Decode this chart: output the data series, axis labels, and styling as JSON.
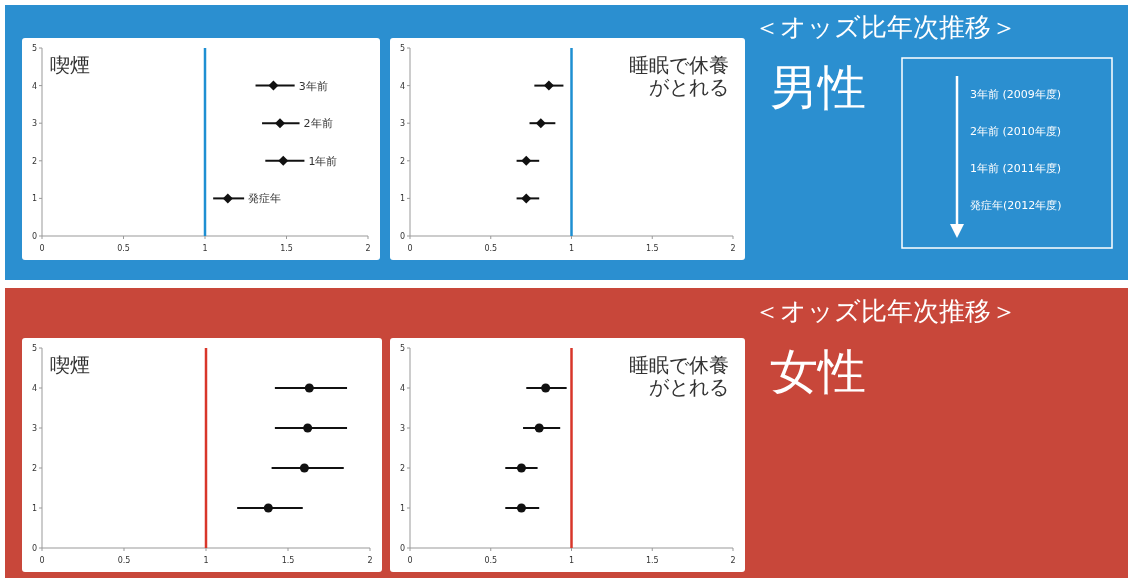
{
  "chart_data": [
    {
      "type": "scatter",
      "title": "喫煙",
      "xlim": [
        0,
        2
      ],
      "xticks": [
        0,
        0.5,
        1,
        1.5,
        2
      ],
      "ylim": [
        0,
        5
      ],
      "yticks": [
        0,
        1,
        2,
        3,
        4,
        5
      ],
      "marker": "diamond",
      "ref_lines": [
        {
          "axis": "x",
          "value": 1,
          "color": "#1e8fd2"
        }
      ],
      "series": [
        {
          "color": "#111111",
          "x": [
            1.42,
            1.46,
            1.48,
            1.14
          ],
          "values": [
            4,
            3,
            2,
            1
          ],
          "xerrors": [
            [
              1.31,
              1.55
            ],
            [
              1.35,
              1.58
            ],
            [
              1.37,
              1.61
            ],
            [
              1.05,
              1.24
            ]
          ]
        }
      ],
      "annotations": [
        {
          "text": "3年前",
          "x": 1.55,
          "y": 4
        },
        {
          "text": "2年前",
          "x": 1.58,
          "y": 3
        },
        {
          "text": "1年前",
          "x": 1.61,
          "y": 2
        },
        {
          "text": "発症年",
          "x": 1.24,
          "y": 1
        }
      ]
    },
    {
      "type": "scatter",
      "title": "睡眠で休養がとれる",
      "xlim": [
        0,
        2
      ],
      "xticks": [
        0,
        0.5,
        1,
        1.5,
        2
      ],
      "ylim": [
        0,
        5
      ],
      "yticks": [
        0,
        1,
        2,
        3,
        4,
        5
      ],
      "marker": "diamond",
      "ref_lines": [
        {
          "axis": "x",
          "value": 1,
          "color": "#1e8fd2"
        }
      ],
      "series": [
        {
          "color": "#111111",
          "x": [
            0.86,
            0.81,
            0.72,
            0.72
          ],
          "values": [
            4,
            3,
            2,
            1
          ],
          "xerrors": [
            [
              0.77,
              0.95
            ],
            [
              0.74,
              0.9
            ],
            [
              0.66,
              0.8
            ],
            [
              0.66,
              0.8
            ]
          ]
        }
      ]
    },
    {
      "type": "other",
      "title": "＜オッズ比年次推移＞",
      "subtitle": "男性",
      "annotations": [
        "3年前 (2009年度)",
        "2年前 (2010年度)",
        "1年前 (2011年度)",
        "発症年(2012年度)"
      ]
    },
    {
      "type": "scatter",
      "title": "喫煙",
      "xlim": [
        0,
        2
      ],
      "xticks": [
        0,
        0.5,
        1,
        1.5,
        2
      ],
      "ylim": [
        0,
        5
      ],
      "yticks": [
        0,
        1,
        2,
        3,
        4,
        5
      ],
      "marker": "circle",
      "ref_lines": [
        {
          "axis": "x",
          "value": 1,
          "color": "#d8362a"
        }
      ],
      "series": [
        {
          "color": "#111111",
          "x": [
            1.63,
            1.62,
            1.6,
            1.38
          ],
          "values": [
            4,
            3,
            2,
            1
          ],
          "xerrors": [
            [
              1.42,
              1.86
            ],
            [
              1.42,
              1.86
            ],
            [
              1.4,
              1.84
            ],
            [
              1.19,
              1.59
            ]
          ]
        }
      ]
    },
    {
      "type": "scatter",
      "title": "睡眠で休養がとれる",
      "xlim": [
        0,
        2
      ],
      "xticks": [
        0,
        0.5,
        1,
        1.5,
        2
      ],
      "ylim": [
        0,
        5
      ],
      "yticks": [
        0,
        1,
        2,
        3,
        4,
        5
      ],
      "marker": "circle",
      "ref_lines": [
        {
          "axis": "x",
          "value": 1,
          "color": "#d8362a"
        }
      ],
      "series": [
        {
          "color": "#111111",
          "x": [
            0.84,
            0.8,
            0.69,
            0.69
          ],
          "values": [
            4,
            3,
            2,
            1
          ],
          "xerrors": [
            [
              0.72,
              0.97
            ],
            [
              0.7,
              0.93
            ],
            [
              0.59,
              0.79
            ],
            [
              0.59,
              0.8
            ]
          ]
        }
      ]
    },
    {
      "type": "other",
      "title": "＜オッズ比年次推移＞",
      "subtitle": "女性"
    }
  ]
}
